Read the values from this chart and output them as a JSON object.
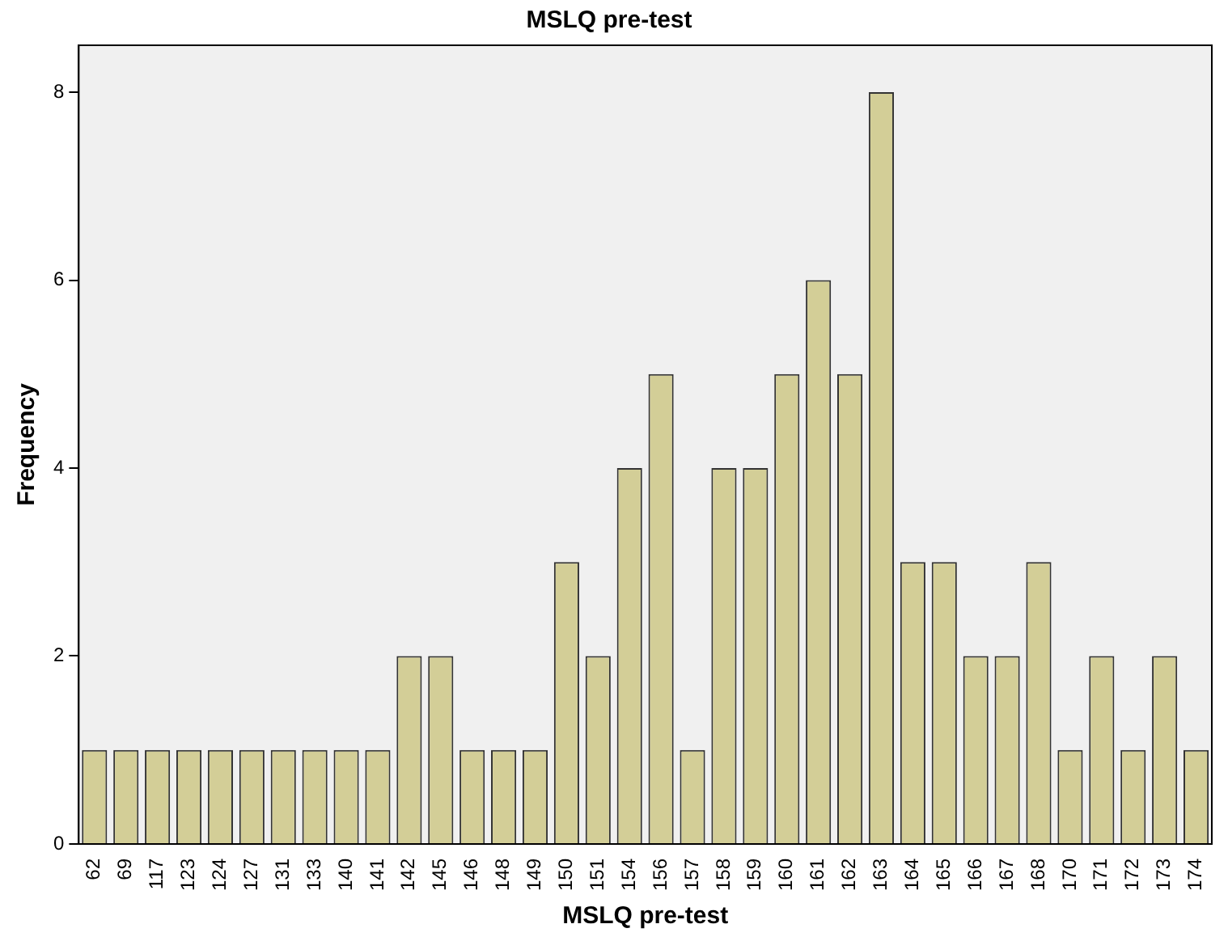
{
  "chart_data": {
    "type": "bar",
    "title": "MSLQ pre-test",
    "xlabel": "MSLQ pre-test",
    "ylabel": "Frequency",
    "categories": [
      "62",
      "69",
      "117",
      "123",
      "124",
      "127",
      "131",
      "133",
      "140",
      "141",
      "142",
      "145",
      "146",
      "148",
      "149",
      "150",
      "151",
      "154",
      "156",
      "157",
      "158",
      "159",
      "160",
      "161",
      "162",
      "163",
      "164",
      "165",
      "166",
      "167",
      "168",
      "170",
      "171",
      "172",
      "173",
      "174"
    ],
    "values": [
      1,
      1,
      1,
      1,
      1,
      1,
      1,
      1,
      1,
      1,
      2,
      2,
      1,
      1,
      1,
      3,
      2,
      4,
      5,
      1,
      4,
      4,
      5,
      6,
      5,
      8,
      3,
      3,
      2,
      2,
      3,
      1,
      2,
      1,
      2,
      1
    ],
    "color": "#d3ce97",
    "ylim": [
      0,
      8.5
    ],
    "yticks": [
      0,
      2,
      4,
      6,
      8
    ],
    "grid": false,
    "legend": false
  }
}
